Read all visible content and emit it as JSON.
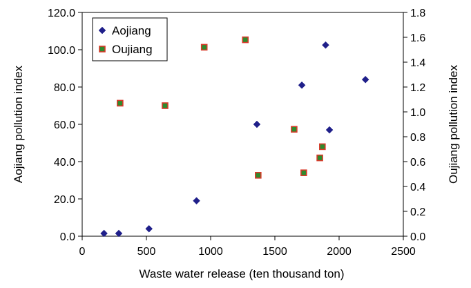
{
  "chart_data": {
    "type": "scatter",
    "xlabel": "Waste water release (ten thousand ton)",
    "ylabel_left": "Aojiang pollution index",
    "ylabel_right": "Oujiang pollution index",
    "xlim": [
      0,
      2500
    ],
    "ylim_left": [
      0,
      120
    ],
    "ylim_right": [
      0,
      1.8
    ],
    "x_ticks": [
      "0",
      "500",
      "1000",
      "1500",
      "2000",
      "2500"
    ],
    "y_left_ticks": [
      "0.0",
      "20.0",
      "40.0",
      "60.0",
      "80.0",
      "100.0",
      "120.0"
    ],
    "y_right_ticks": [
      "0.0",
      "0.2",
      "0.4",
      "0.6",
      "0.8",
      "1.0",
      "1.2",
      "1.4",
      "1.6",
      "1.8"
    ],
    "grid": false,
    "legend_position": "top-left",
    "series": [
      {
        "name": "Aojiang",
        "axis": "left",
        "marker": "diamond",
        "color": "#1f1f8a",
        "points": [
          {
            "x": 170,
            "y": 1.5
          },
          {
            "x": 285,
            "y": 1.5
          },
          {
            "x": 520,
            "y": 4.0
          },
          {
            "x": 890,
            "y": 19.0
          },
          {
            "x": 1360,
            "y": 60.0
          },
          {
            "x": 1710,
            "y": 81.0
          },
          {
            "x": 1895,
            "y": 102.5
          },
          {
            "x": 1925,
            "y": 57.0
          },
          {
            "x": 2205,
            "y": 84.0
          }
        ]
      },
      {
        "name": "Oujiang",
        "axis": "right",
        "marker": "square",
        "color": "#2e8b2e",
        "edge_color": "#d93a2a",
        "points": [
          {
            "x": 295,
            "y": 1.07
          },
          {
            "x": 645,
            "y": 1.05
          },
          {
            "x": 950,
            "y": 1.52
          },
          {
            "x": 1270,
            "y": 1.58
          },
          {
            "x": 1370,
            "y": 0.49
          },
          {
            "x": 1650,
            "y": 0.86
          },
          {
            "x": 1725,
            "y": 0.51
          },
          {
            "x": 1850,
            "y": 0.63
          },
          {
            "x": 1870,
            "y": 0.72
          }
        ]
      }
    ]
  }
}
